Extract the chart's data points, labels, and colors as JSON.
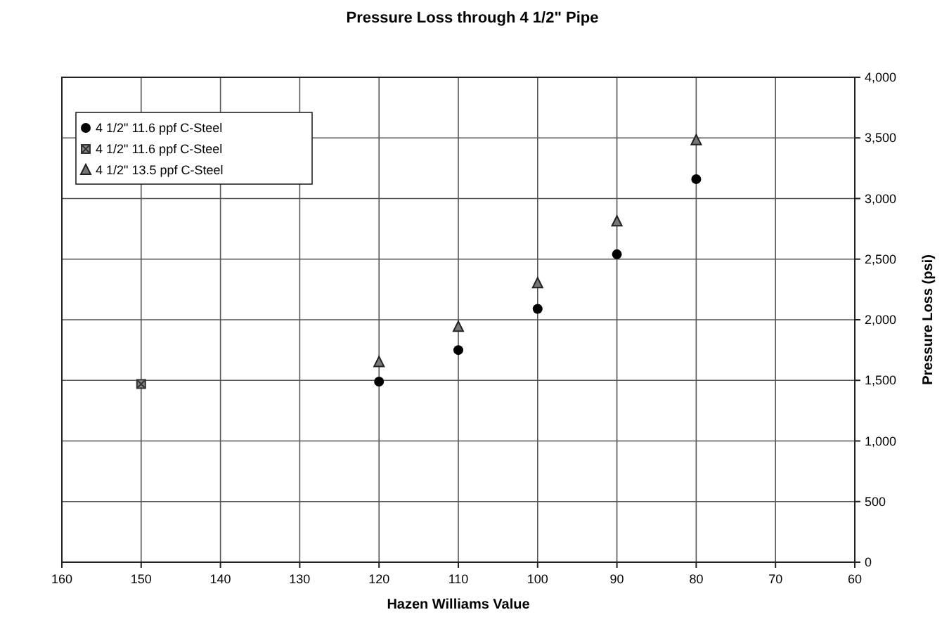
{
  "chart_data": {
    "type": "scatter",
    "title": "Pressure Loss through 4 1/2\" Pipe",
    "xlabel": "Hazen Williams Value",
    "ylabel": "Pressure Loss (psi)",
    "xlim": [
      160,
      60
    ],
    "xticks": [
      160,
      150,
      140,
      130,
      120,
      110,
      100,
      90,
      80,
      70,
      60
    ],
    "ylim": [
      0,
      4000
    ],
    "yticks": [
      {
        "value": 0,
        "label": "0"
      },
      {
        "value": 500,
        "label": "500"
      },
      {
        "value": 1000,
        "label": "1,000"
      },
      {
        "value": 1500,
        "label": "1,500"
      },
      {
        "value": 2000,
        "label": "2,000"
      },
      {
        "value": 2500,
        "label": "2,500"
      },
      {
        "value": 3000,
        "label": "3,000"
      },
      {
        "value": 3500,
        "label": "3,500"
      },
      {
        "value": 4000,
        "label": "4,000"
      }
    ],
    "grid": true,
    "legend": "top left",
    "series": [
      {
        "name": "4 1/2\" 11.6 ppf C-Steel",
        "color": "#000000",
        "marker": "circle",
        "x": [
          120,
          110,
          100,
          90,
          80
        ],
        "values": [
          1490,
          1750,
          2090,
          2540,
          3160
        ]
      },
      {
        "name": "4 1/2\" 11.6 ppf C-Steel",
        "color": "#333333",
        "marker": "square",
        "x": [
          150
        ],
        "values": [
          1470
        ]
      },
      {
        "name": "4 1/2\" 13.5 ppf C-Steel",
        "color": "#222222",
        "marker": "triangle",
        "x": [
          120,
          110,
          100,
          90,
          80
        ],
        "values": [
          1650,
          1940,
          2300,
          2810,
          3480
        ]
      }
    ]
  }
}
